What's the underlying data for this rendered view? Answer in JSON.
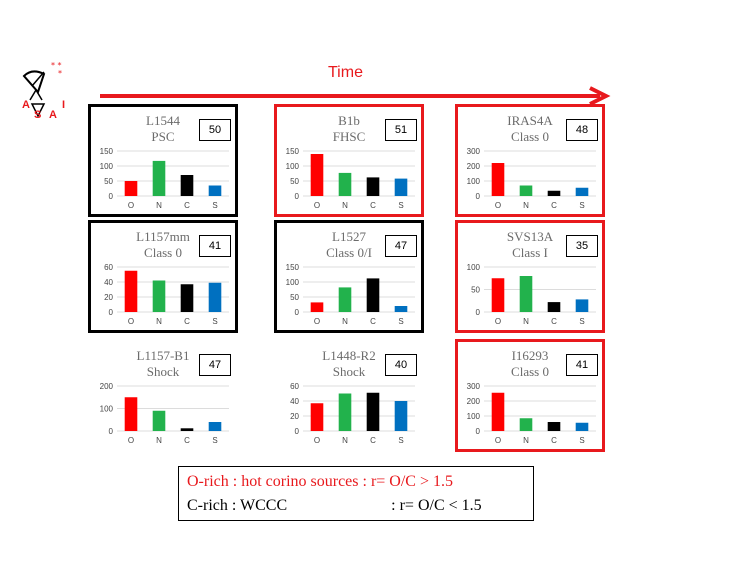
{
  "header": {
    "time_label": "Time",
    "logo_letters": [
      "A",
      "S",
      "A",
      "I"
    ]
  },
  "legend": {
    "rows": [
      {
        "text": "O-rich : hot corino sources : r= O/C > 1.5",
        "color": "#e8191d"
      },
      {
        "text": "C-rich : WCCC                          : r= O/C < 1.5",
        "color": "#000000"
      }
    ]
  },
  "colors": {
    "O": "#ff0000",
    "N": "#22b24c",
    "C": "#000000",
    "S": "#0070c0",
    "frame_red": "#e8191d",
    "frame_black": "#000000",
    "axis": "#d0d0d0"
  },
  "chart_data": [
    {
      "type": "bar",
      "name": "L1544",
      "subtitle": "PSC",
      "count": "50",
      "frame": "black",
      "categories": [
        "O",
        "N",
        "C",
        "S"
      ],
      "values": [
        50,
        117,
        70,
        35
      ],
      "yticks": [
        0,
        50,
        100,
        150
      ],
      "ylim": [
        0,
        150
      ]
    },
    {
      "type": "bar",
      "name": "B1b",
      "subtitle": "FHSC",
      "count": "51",
      "frame": "red",
      "categories": [
        "O",
        "N",
        "C",
        "S"
      ],
      "values": [
        140,
        77,
        62,
        58
      ],
      "yticks": [
        0,
        50,
        100,
        150
      ],
      "ylim": [
        0,
        150
      ]
    },
    {
      "type": "bar",
      "name": "IRAS4A",
      "subtitle": "Class 0",
      "count": "48",
      "frame": "red",
      "categories": [
        "O",
        "N",
        "C",
        "S"
      ],
      "values": [
        220,
        70,
        35,
        55
      ],
      "yticks": [
        0,
        100,
        200,
        300
      ],
      "ylim": [
        0,
        300
      ]
    },
    {
      "type": "bar",
      "name": "L1157mm",
      "subtitle": "Class 0",
      "count": "41",
      "frame": "black",
      "categories": [
        "O",
        "N",
        "C",
        "S"
      ],
      "values": [
        55,
        42,
        37,
        39
      ],
      "yticks": [
        0,
        20,
        40,
        60
      ],
      "ylim": [
        0,
        60
      ]
    },
    {
      "type": "bar",
      "name": "L1527",
      "subtitle": "Class 0/I",
      "count": "47",
      "frame": "black",
      "categories": [
        "O",
        "N",
        "C",
        "S"
      ],
      "values": [
        32,
        82,
        112,
        20
      ],
      "yticks": [
        0,
        50,
        100,
        150
      ],
      "ylim": [
        0,
        150
      ]
    },
    {
      "type": "bar",
      "name": "SVS13A",
      "subtitle": "Class I",
      "count": "35",
      "frame": "red",
      "categories": [
        "O",
        "N",
        "C",
        "S"
      ],
      "values": [
        75,
        80,
        22,
        28
      ],
      "yticks": [
        0,
        50,
        100
      ],
      "ylim": [
        0,
        100
      ]
    },
    {
      "type": "bar",
      "name": "L1157-B1",
      "subtitle": "Shock",
      "count": "47",
      "frame": "none",
      "categories": [
        "O",
        "N",
        "C",
        "S"
      ],
      "values": [
        150,
        90,
        12,
        40
      ],
      "yticks": [
        0,
        100,
        200
      ],
      "ylim": [
        0,
        200
      ]
    },
    {
      "type": "bar",
      "name": "L1448-R2",
      "subtitle": "Shock",
      "count": "40",
      "frame": "none",
      "categories": [
        "O",
        "N",
        "C",
        "S"
      ],
      "values": [
        37,
        50,
        51,
        40
      ],
      "yticks": [
        0,
        20,
        40,
        60
      ],
      "ylim": [
        0,
        60
      ]
    },
    {
      "type": "bar",
      "name": "I16293",
      "subtitle": "Class 0",
      "count": "41",
      "frame": "red",
      "categories": [
        "O",
        "N",
        "C",
        "S"
      ],
      "values": [
        255,
        85,
        60,
        55
      ],
      "yticks": [
        0,
        100,
        200,
        300
      ],
      "ylim": [
        0,
        300
      ]
    }
  ]
}
